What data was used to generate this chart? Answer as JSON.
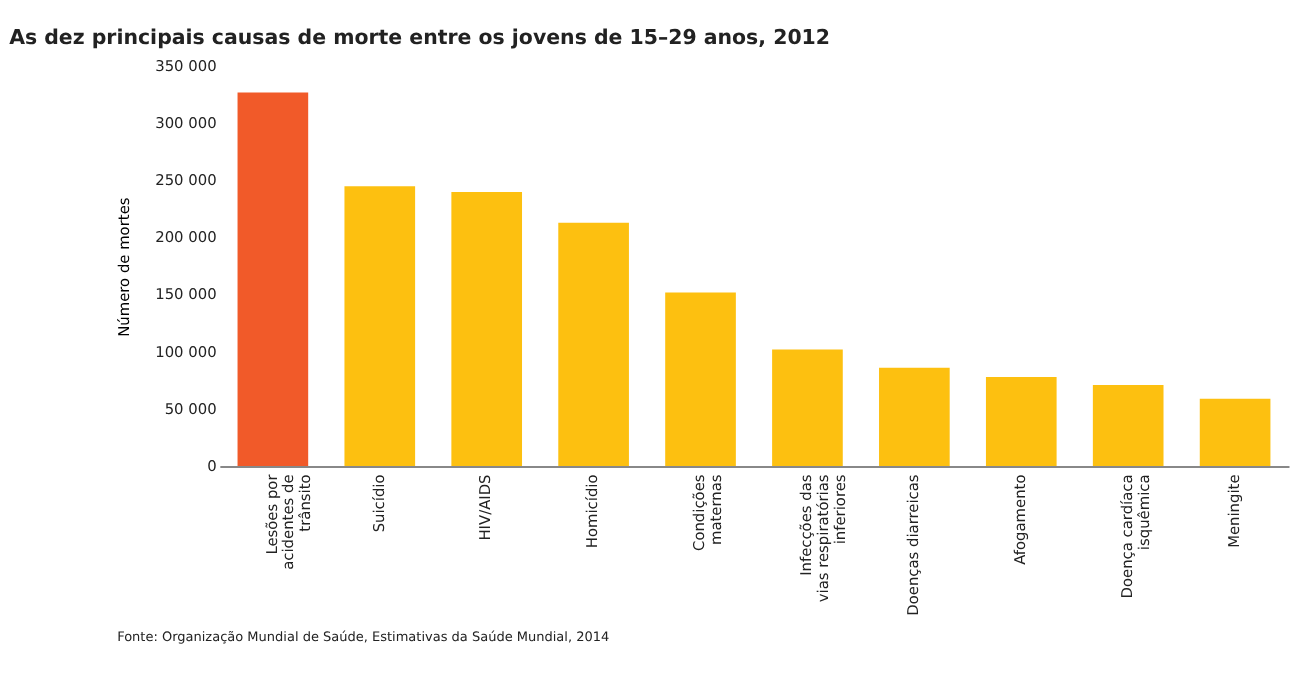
{
  "chart_data": {
    "type": "bar",
    "title": "As dez principais causas de morte entre os jovens de 15–29 anos, 2012",
    "ylabel": "Número de mortes",
    "categories": [
      "Lesões por\nacidentes de\ntrânsito",
      "Suicídio",
      "HIV/AIDS",
      "Homicídio",
      "Condições\nmaternas",
      "Infecções das\nvias respiratórias\ninferiores",
      "Doenças diarreicas",
      "Afogamento",
      "Doença cardíaca\nisquêmica",
      "Meningite"
    ],
    "values": [
      327000,
      245000,
      240000,
      213000,
      152000,
      102000,
      86000,
      78000,
      71000,
      59000
    ],
    "colors": [
      "#f15a29",
      "#fdc010",
      "#fdc010",
      "#fdc010",
      "#fdc010",
      "#fdc010",
      "#fdc010",
      "#fdc010",
      "#fdc010",
      "#fdc010"
    ],
    "ylim": [
      0,
      350000
    ],
    "yticks": [
      0,
      {
        "value": 50000,
        "label": "50 000"
      },
      {
        "value": 100000,
        "label": "100 000"
      },
      {
        "value": 150000,
        "label": "150 000"
      },
      {
        "value": 200000,
        "label": "200 000"
      },
      {
        "value": 250000,
        "label": "250 000"
      },
      {
        "value": 300000,
        "label": "300 000"
      },
      {
        "value": 350000,
        "label": "350 000"
      }
    ],
    "grid": false,
    "annotations": [
      "Fonte: Organização Mundial de Saúde, Estimativas da Saúde Mundial, 2014"
    ]
  }
}
